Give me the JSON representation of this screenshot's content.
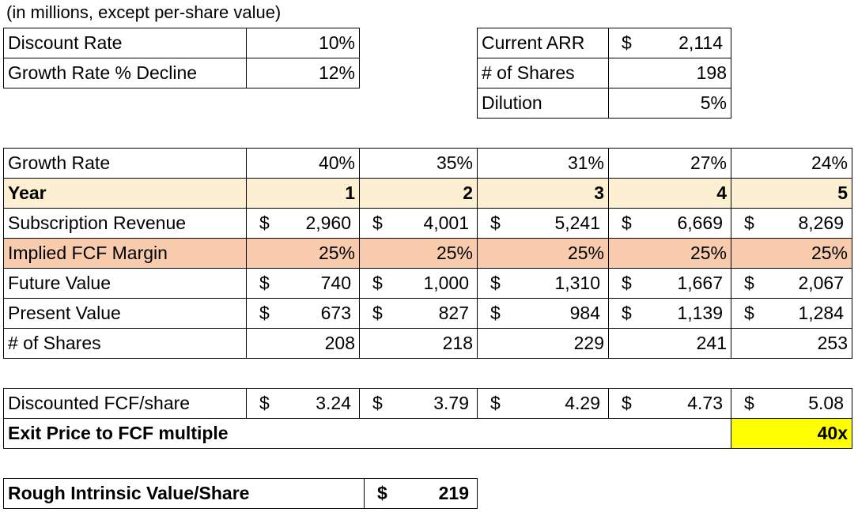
{
  "note": "(in millions, except per-share value)",
  "assumptions": {
    "discount_rate_label": "Discount Rate",
    "discount_rate": "10%",
    "growth_decline_label": "Growth Rate % Decline",
    "growth_decline": "12%"
  },
  "company": {
    "arr_label": "Current ARR",
    "arr_symbol": "$",
    "arr_value": "2,114",
    "shares_label": "# of Shares",
    "shares_value": "198",
    "dilution_label": "Dilution",
    "dilution_value": "5%"
  },
  "projection": {
    "growth_label": "Growth Rate",
    "growth": [
      "40%",
      "35%",
      "31%",
      "27%",
      "24%"
    ],
    "year_label": "Year",
    "years": [
      "1",
      "2",
      "3",
      "4",
      "5"
    ],
    "revenue_label": "Subscription Revenue",
    "revenue": [
      "2,960",
      "4,001",
      "5,241",
      "6,669",
      "8,269"
    ],
    "margin_label": "Implied FCF Margin",
    "margin": [
      "25%",
      "25%",
      "25%",
      "25%",
      "25%"
    ],
    "future_label": "Future Value",
    "future": [
      "740",
      "1,000",
      "1,310",
      "1,667",
      "2,067"
    ],
    "present_label": "Present Value",
    "present": [
      "673",
      "827",
      "984",
      "1,139",
      "1,284"
    ],
    "shares_label": "# of Shares",
    "shares": [
      "208",
      "218",
      "229",
      "241",
      "253"
    ],
    "currency_symbol": "$"
  },
  "valuation": {
    "dfcf_label": "Discounted FCF/share",
    "dfcf": [
      "3.24",
      "3.79",
      "4.29",
      "4.73",
      "5.08"
    ],
    "exit_label": "Exit Price to FCF multiple",
    "exit_value": "40x",
    "intrinsic_label": "Rough Intrinsic Value/Share",
    "intrinsic_symbol": "$",
    "intrinsic_value": "219"
  },
  "colors": {
    "year_row": "#fdefd1",
    "fcf_margin_row": "#f7cbac",
    "exit_highlight": "#ffff00"
  }
}
